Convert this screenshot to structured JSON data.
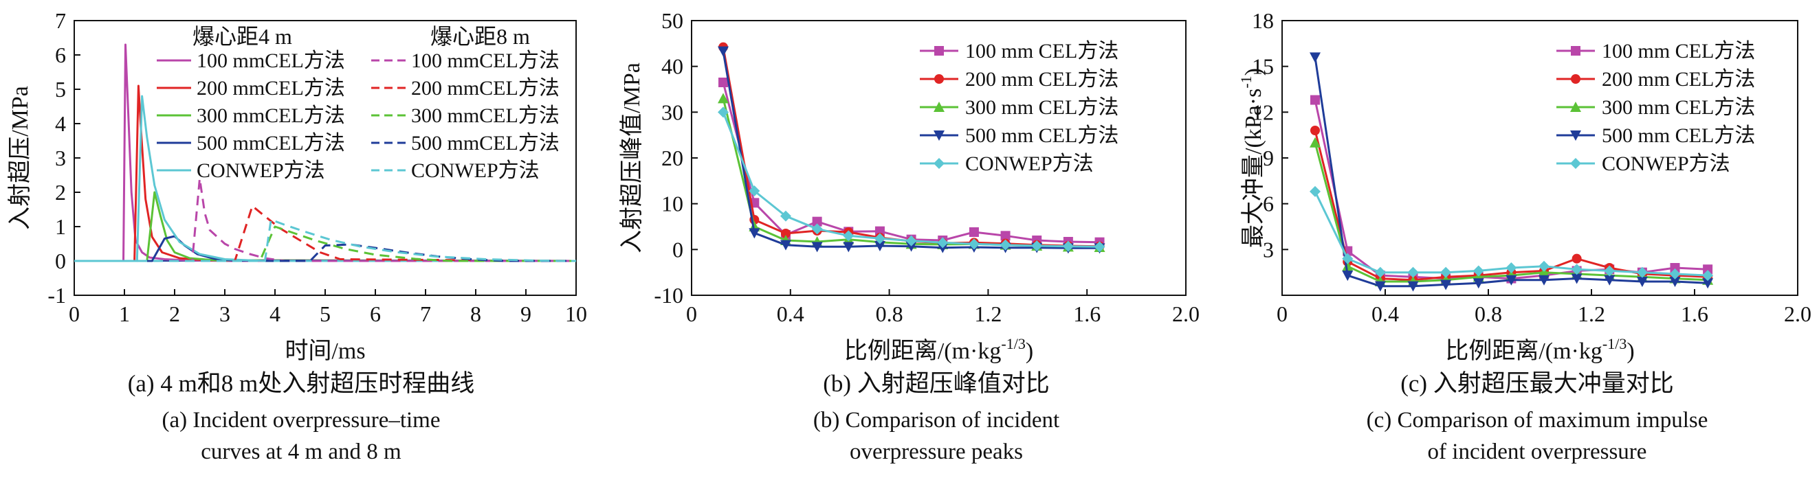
{
  "chart_data": [
    {
      "type": "line",
      "panel": "a",
      "xlabel": "时间/ms",
      "ylabel": "入射超压/MPa",
      "xlim": [
        0,
        10
      ],
      "ylim": [
        -1,
        7
      ],
      "xticks": [
        0,
        1,
        2,
        3,
        4,
        5,
        6,
        7,
        8,
        9,
        10
      ],
      "yticks": [
        -1,
        0,
        1,
        2,
        3,
        4,
        5,
        6,
        7
      ],
      "legend_headers": [
        "爆心距4 m",
        "爆心距8 m"
      ],
      "legend_placement": "top-right",
      "caption_cn": "(a) 4 m和8 m处入射超压时程曲线",
      "caption_en": [
        "(a) Incident overpressure–time",
        "curves at 4 m and 8 m"
      ],
      "series": [
        {
          "name": "100 mmCEL方法",
          "color": "#b946a9",
          "dash": false,
          "x": [
            0,
            0.98,
            1.02,
            1.08,
            1.14,
            1.22,
            1.35,
            1.5,
            1.8,
            2.2,
            3.0,
            10
          ],
          "y": [
            0,
            0,
            6.3,
            4.2,
            2.0,
            0.6,
            0.25,
            0.1,
            0.05,
            0.02,
            0.0,
            0.0
          ]
        },
        {
          "name": "200 mmCEL方法",
          "color": "#e02424",
          "dash": false,
          "x": [
            0,
            1.2,
            1.28,
            1.34,
            1.42,
            1.55,
            1.75,
            2.1,
            2.6,
            10
          ],
          "y": [
            0,
            0,
            5.1,
            3.6,
            1.8,
            0.7,
            0.25,
            0.08,
            0.02,
            0.0
          ]
        },
        {
          "name": "300 mmCEL方法",
          "color": "#5bc236",
          "dash": false,
          "x": [
            0,
            1.45,
            1.6,
            1.72,
            1.85,
            2.0,
            2.3,
            2.8,
            10
          ],
          "y": [
            0,
            0,
            2.0,
            1.3,
            0.6,
            0.25,
            0.08,
            0.02,
            0.0
          ]
        },
        {
          "name": "500 mmCEL方法",
          "color": "#1f3c99",
          "dash": false,
          "x": [
            0,
            1.55,
            1.8,
            2.0,
            2.2,
            2.45,
            2.8,
            3.2,
            10
          ],
          "y": [
            0,
            0,
            0.65,
            0.72,
            0.45,
            0.2,
            0.06,
            0.01,
            0.0
          ]
        },
        {
          "name": "CONWEP方法",
          "color": "#5cc7d3",
          "dash": false,
          "x": [
            0,
            1.25,
            1.35,
            1.45,
            1.6,
            1.8,
            2.1,
            2.5,
            3.0,
            3.8,
            10
          ],
          "y": [
            0,
            0,
            4.8,
            3.6,
            2.2,
            1.2,
            0.55,
            0.2,
            0.05,
            0.0,
            0.0
          ]
        },
        {
          "name": "100 mmCEL方法",
          "color": "#b946a9",
          "dash": true,
          "x": [
            0,
            2.35,
            2.5,
            2.6,
            2.7,
            2.85,
            3.0,
            3.2,
            3.5,
            3.8,
            4.2,
            10
          ],
          "y": [
            0,
            0,
            2.4,
            1.4,
            0.9,
            0.7,
            0.5,
            0.35,
            0.2,
            0.08,
            0.0,
            0.0
          ]
        },
        {
          "name": "200 mmCEL方法",
          "color": "#e02424",
          "dash": true,
          "x": [
            0,
            3.2,
            3.55,
            3.8,
            4.1,
            4.5,
            4.9,
            5.3,
            10
          ],
          "y": [
            0,
            0,
            1.6,
            1.3,
            0.95,
            0.6,
            0.25,
            0.05,
            0.0
          ]
        },
        {
          "name": "300 mmCEL方法",
          "color": "#5bc236",
          "dash": true,
          "x": [
            0,
            3.7,
            4.0,
            4.3,
            4.8,
            5.4,
            6.0,
            6.8,
            7.5,
            10
          ],
          "y": [
            0,
            0,
            1.0,
            0.85,
            0.6,
            0.35,
            0.18,
            0.06,
            0.0,
            0.0
          ]
        },
        {
          "name": "500 mmCEL方法",
          "color": "#1f3c99",
          "dash": true,
          "x": [
            0,
            4.7,
            5.0,
            5.5,
            6.0,
            6.6,
            7.3,
            8.0,
            8.6,
            10
          ],
          "y": [
            0,
            0,
            0.45,
            0.48,
            0.38,
            0.25,
            0.12,
            0.04,
            0.0,
            0.0
          ]
        },
        {
          "name": "CONWEP方法",
          "color": "#5cc7d3",
          "dash": true,
          "x": [
            0,
            3.8,
            3.92,
            4.2,
            4.6,
            5.1,
            5.7,
            6.4,
            7.2,
            8.2,
            9.2,
            10
          ],
          "y": [
            0,
            0,
            1.2,
            1.05,
            0.85,
            0.62,
            0.42,
            0.26,
            0.13,
            0.05,
            0.01,
            0.0
          ]
        }
      ]
    },
    {
      "type": "line",
      "panel": "b",
      "xlabel": "比例距离/(m·kg",
      "xlabel_sup": "-1/3",
      "xlabel_end": ")",
      "ylabel": "入射超压峰值/MPa",
      "xlim": [
        0,
        2.0
      ],
      "ylim": [
        -10,
        50
      ],
      "xticks": [
        0,
        0.4,
        0.8,
        1.2,
        1.6,
        2.0
      ],
      "xtick_labels": [
        "0",
        "0.4",
        "0.8",
        "1.2",
        "1.6",
        "2.0"
      ],
      "yticks": [
        -10,
        0,
        10,
        20,
        30,
        40,
        50
      ],
      "legend_placement": "top-right",
      "caption_cn": "(b) 入射超压峰值对比",
      "caption_en": [
        "(b) Comparison of incident",
        "overpressure peaks"
      ],
      "x": [
        0.128,
        0.254,
        0.381,
        0.508,
        0.635,
        0.762,
        0.889,
        1.016,
        1.143,
        1.27,
        1.397,
        1.524,
        1.651
      ],
      "series": [
        {
          "name": "100 mm CEL方法",
          "color": "#b946a9",
          "marker": "square",
          "y": [
            36.5,
            10.2,
            3.2,
            6.1,
            3.9,
            4.0,
            2.2,
            2.0,
            3.8,
            3.0,
            2.0,
            1.7,
            1.6
          ]
        },
        {
          "name": "200 mm CEL方法",
          "color": "#e02424",
          "marker": "circle",
          "y": [
            44.2,
            6.5,
            3.5,
            4.1,
            3.8,
            2.6,
            1.8,
            1.4,
            1.5,
            1.3,
            1.0,
            0.8,
            0.7
          ]
        },
        {
          "name": "300 mm CEL方法",
          "color": "#5bc236",
          "marker": "triangle-up",
          "y": [
            33.0,
            5.0,
            2.0,
            1.7,
            2.2,
            1.6,
            1.2,
            1.1,
            1.2,
            1.0,
            0.8,
            0.6,
            0.5
          ]
        },
        {
          "name": "500 mm CEL方法",
          "color": "#1f3c99",
          "marker": "triangle-down",
          "y": [
            43.3,
            3.6,
            1.0,
            0.6,
            0.6,
            0.8,
            0.7,
            0.4,
            0.5,
            0.4,
            0.4,
            0.3,
            0.3
          ]
        },
        {
          "name": "CONWEP方法",
          "color": "#5cc7d3",
          "marker": "diamond",
          "y": [
            30.0,
            12.8,
            7.3,
            4.5,
            3.0,
            2.4,
            1.9,
            1.5,
            1.2,
            1.0,
            0.8,
            0.7,
            0.6
          ]
        }
      ]
    },
    {
      "type": "line",
      "panel": "c",
      "xlabel": "比例距离/(m·kg",
      "xlabel_sup": "-1/3",
      "xlabel_end": ")",
      "ylabel": "最大冲量/(kPa·s",
      "ylabel_sup": "-1",
      "ylabel_end": ")",
      "xlim": [
        0,
        2.0
      ],
      "ylim": [
        0,
        18
      ],
      "xticks": [
        0,
        0.4,
        0.8,
        1.2,
        1.6,
        2.0
      ],
      "xtick_labels": [
        "0",
        "0.4",
        "0.8",
        "1.2",
        "1.6",
        "2.0"
      ],
      "yticks": [
        3,
        6,
        9,
        12,
        15,
        18
      ],
      "legend_placement": "top-right",
      "caption_cn": "(c) 入射超压最大冲量对比",
      "caption_en": [
        "(c) Comparison of maximum impulse",
        "of incident overpressure"
      ],
      "x": [
        0.128,
        0.254,
        0.381,
        0.508,
        0.635,
        0.762,
        0.889,
        1.016,
        1.143,
        1.27,
        1.397,
        1.524,
        1.651
      ],
      "series": [
        {
          "name": "100 mm CEL方法",
          "color": "#b946a9",
          "marker": "square",
          "y": [
            12.8,
            2.9,
            1.3,
            1.2,
            1.1,
            1.2,
            1.1,
            1.3,
            1.6,
            1.7,
            1.5,
            1.8,
            1.7
          ]
        },
        {
          "name": "200 mm CEL方法",
          "color": "#e02424",
          "marker": "circle",
          "y": [
            10.8,
            2.2,
            1.1,
            1.0,
            1.2,
            1.3,
            1.5,
            1.6,
            2.4,
            1.8,
            1.4,
            1.3,
            1.2
          ]
        },
        {
          "name": "300 mm CEL方法",
          "color": "#5bc236",
          "marker": "triangle-up",
          "y": [
            10.0,
            1.9,
            0.9,
            0.9,
            1.0,
            1.2,
            1.3,
            1.5,
            1.4,
            1.3,
            1.2,
            1.1,
            1.0
          ]
        },
        {
          "name": "500 mm CEL方法",
          "color": "#1f3c99",
          "marker": "triangle-down",
          "y": [
            15.6,
            1.3,
            0.6,
            0.6,
            0.7,
            0.8,
            1.0,
            1.0,
            1.1,
            1.0,
            0.9,
            0.9,
            0.8
          ]
        },
        {
          "name": "CONWEP方法",
          "color": "#5cc7d3",
          "marker": "diamond",
          "y": [
            6.8,
            2.4,
            1.5,
            1.5,
            1.5,
            1.6,
            1.8,
            1.9,
            1.7,
            1.6,
            1.5,
            1.4,
            1.3
          ]
        }
      ]
    }
  ]
}
